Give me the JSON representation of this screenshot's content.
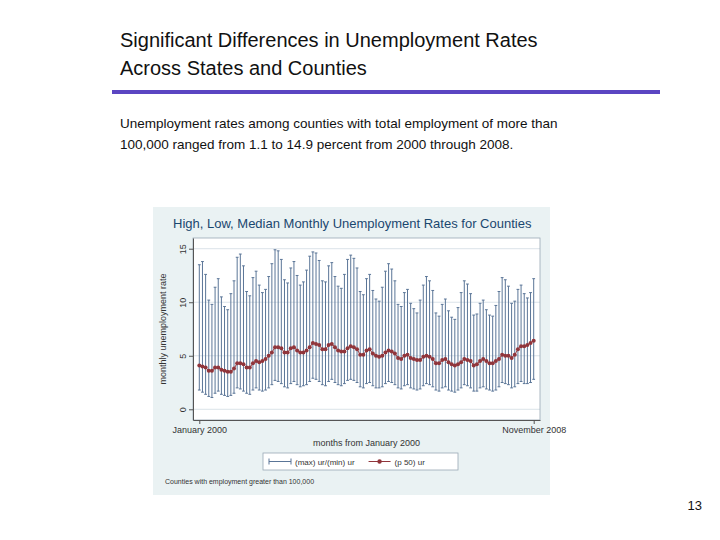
{
  "slide": {
    "title": [
      "Significant Differences in Unemployment Rates",
      "Across States and Counties"
    ],
    "text": [
      "Unemployment rates among counties with total employment of more than",
      "100,000 ranged from 1.1 to 14.9 percent from 2000 through 2008."
    ],
    "page": 13
  },
  "chart_data": {
    "type": "range",
    "title": "High, Low, Median Monthly Unemployment Rates for Counties",
    "x_label": "months from January 2000",
    "y_label": "monthly unemployment rate",
    "note": "Counties with employment greater than 100,000",
    "grid": true,
    "x": [
      0,
      1,
      2,
      3,
      4,
      5,
      6,
      7,
      8,
      9,
      10,
      11,
      12,
      13,
      14,
      15,
      16,
      17,
      18,
      19,
      20,
      21,
      22,
      23,
      24,
      25,
      26,
      27,
      28,
      29,
      30,
      31,
      32,
      33,
      34,
      35,
      36,
      37,
      38,
      39,
      40,
      41,
      42,
      43,
      44,
      45,
      46,
      47,
      48,
      49,
      50,
      51,
      52,
      53,
      54,
      55,
      56,
      57,
      58,
      59,
      60,
      61,
      62,
      63,
      64,
      65,
      66,
      67,
      68,
      69,
      70,
      71,
      72,
      73,
      74,
      75,
      76,
      77,
      78,
      79,
      80,
      81,
      82,
      83,
      84,
      85,
      86,
      87,
      88,
      89,
      90,
      91,
      92,
      93,
      94,
      95,
      96,
      97,
      98,
      99,
      100,
      101,
      102,
      103,
      104,
      105,
      106
    ],
    "xlim": [
      -2,
      108
    ],
    "xticks": [
      {
        "value": 0,
        "label": "January 2000"
      },
      {
        "value": 106,
        "label": "November 2008"
      }
    ],
    "ylim": [
      -1,
      16
    ],
    "yticks": [
      0,
      5,
      10,
      15
    ],
    "series": [
      {
        "name": "(max) ur/(min) ur",
        "type": "range",
        "color": "#5a7597",
        "high": [
          13.5,
          13.8,
          12.6,
          10.2,
          9.8,
          11.4,
          12.2,
          10.5,
          9.6,
          9.3,
          10.8,
          12.0,
          14.2,
          14.5,
          13.4,
          11.0,
          10.6,
          12.3,
          12.9,
          11.6,
          10.9,
          11.2,
          12.4,
          13.6,
          14.9,
          14.8,
          14.0,
          12.1,
          11.8,
          13.2,
          13.8,
          12.5,
          11.6,
          11.9,
          13.0,
          14.3,
          14.7,
          14.6,
          13.9,
          12.0,
          11.9,
          13.4,
          13.7,
          12.4,
          11.5,
          11.3,
          12.6,
          14.0,
          14.4,
          14.1,
          13.2,
          11.0,
          10.7,
          12.2,
          12.6,
          11.1,
          10.3,
          10.1,
          11.4,
          12.9,
          13.6,
          13.1,
          12.0,
          9.8,
          9.6,
          10.9,
          11.2,
          9.9,
          9.4,
          9.0,
          10.2,
          11.6,
          12.4,
          12.0,
          11.1,
          9.0,
          8.7,
          9.8,
          10.3,
          9.2,
          8.6,
          8.4,
          9.5,
          10.9,
          12.0,
          11.7,
          10.8,
          8.8,
          8.9,
          9.9,
          10.2,
          9.3,
          8.8,
          8.7,
          9.7,
          11.0,
          12.3,
          12.1,
          11.5,
          9.9,
          10.1,
          11.2,
          11.6,
          10.8,
          10.4,
          10.9,
          12.2
        ],
        "low": [
          1.8,
          1.6,
          1.4,
          1.2,
          1.1,
          1.5,
          1.7,
          1.4,
          1.3,
          1.2,
          1.3,
          1.5,
          2.0,
          1.9,
          1.7,
          1.5,
          1.4,
          1.8,
          2.0,
          1.8,
          1.7,
          1.8,
          2.0,
          2.3,
          2.7,
          2.6,
          2.4,
          2.1,
          2.0,
          2.4,
          2.6,
          2.3,
          2.1,
          2.2,
          2.3,
          2.6,
          2.9,
          2.8,
          2.6,
          2.3,
          2.2,
          2.6,
          2.8,
          2.5,
          2.3,
          2.2,
          2.4,
          2.7,
          2.8,
          2.7,
          2.5,
          2.1,
          2.0,
          2.4,
          2.5,
          2.2,
          2.0,
          2.0,
          2.1,
          2.4,
          2.6,
          2.5,
          2.3,
          2.0,
          1.9,
          2.2,
          2.3,
          2.0,
          1.9,
          1.8,
          1.9,
          2.2,
          2.4,
          2.3,
          2.1,
          1.8,
          1.7,
          2.0,
          2.1,
          1.8,
          1.7,
          1.6,
          1.8,
          2.0,
          2.3,
          2.2,
          2.0,
          1.7,
          1.7,
          2.0,
          2.1,
          1.9,
          1.8,
          1.7,
          1.8,
          2.1,
          2.5,
          2.4,
          2.3,
          2.0,
          2.1,
          2.4,
          2.6,
          2.4,
          2.4,
          2.5,
          2.8
        ]
      },
      {
        "name": "(p 50) ur",
        "type": "line",
        "color": "#90353b",
        "marker": "circle",
        "values": [
          4.1,
          4.0,
          3.9,
          3.6,
          3.6,
          3.9,
          3.9,
          3.7,
          3.6,
          3.5,
          3.5,
          3.8,
          4.3,
          4.3,
          4.2,
          3.9,
          3.9,
          4.3,
          4.5,
          4.4,
          4.5,
          4.7,
          5.0,
          5.3,
          5.8,
          5.8,
          5.7,
          5.3,
          5.3,
          5.7,
          5.8,
          5.5,
          5.3,
          5.3,
          5.5,
          5.8,
          6.2,
          6.1,
          6.0,
          5.6,
          5.6,
          6.0,
          6.1,
          5.8,
          5.5,
          5.4,
          5.4,
          5.7,
          5.9,
          5.8,
          5.6,
          5.1,
          5.1,
          5.5,
          5.6,
          5.2,
          5.0,
          4.9,
          5.0,
          5.3,
          5.5,
          5.4,
          5.2,
          4.8,
          4.7,
          5.0,
          5.1,
          4.8,
          4.7,
          4.6,
          4.6,
          4.9,
          5.0,
          4.9,
          4.7,
          4.3,
          4.3,
          4.6,
          4.7,
          4.4,
          4.2,
          4.1,
          4.2,
          4.4,
          4.7,
          4.6,
          4.5,
          4.1,
          4.2,
          4.5,
          4.7,
          4.5,
          4.3,
          4.3,
          4.5,
          4.7,
          5.1,
          5.0,
          5.0,
          4.8,
          5.1,
          5.6,
          5.9,
          5.9,
          6.0,
          6.2,
          6.4
        ]
      }
    ]
  }
}
